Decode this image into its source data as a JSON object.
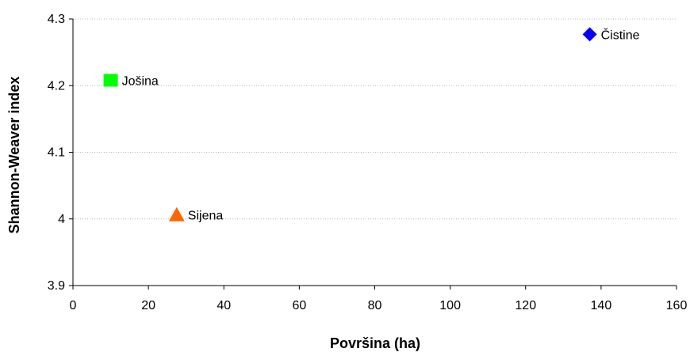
{
  "chart_data": {
    "type": "scatter",
    "title": "",
    "xlabel": "Površina (ha)",
    "ylabel": "Shannon-Weaver index",
    "xlim": [
      0,
      160
    ],
    "ylim": [
      3.9,
      4.3
    ],
    "xticks": [
      0,
      20,
      40,
      60,
      80,
      100,
      120,
      140,
      160
    ],
    "yticks": [
      "3.9",
      "4",
      "4.1",
      "4.2",
      "4.3"
    ],
    "grid": "horizontal",
    "legend": "none",
    "points": [
      {
        "label": "Čistine",
        "x": 137,
        "y": 4.277,
        "marker": "diamond",
        "color": "#0000ff"
      },
      {
        "label": "Jošina",
        "x": 10,
        "y": 4.208,
        "marker": "square",
        "color": "#00ff00"
      },
      {
        "label": "Sijena",
        "x": 27.5,
        "y": 4.006,
        "marker": "triangle",
        "color": "#ff6600"
      }
    ]
  }
}
